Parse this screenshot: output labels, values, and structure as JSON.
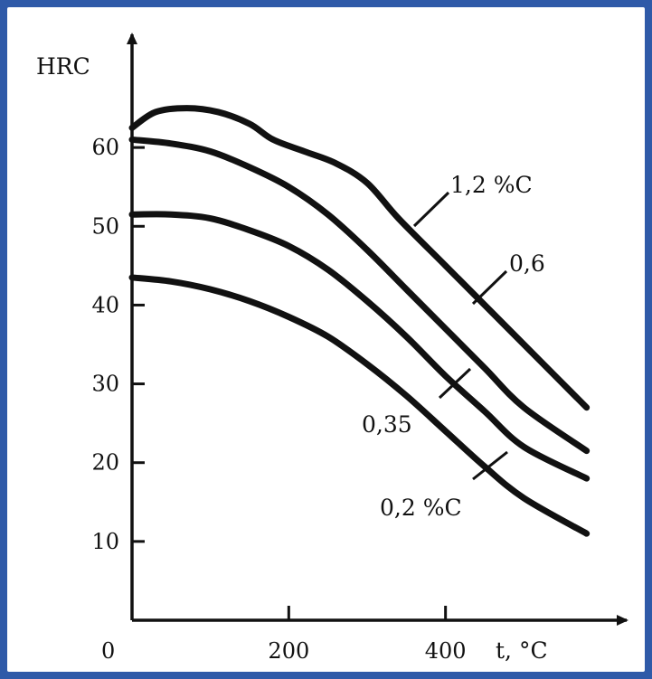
{
  "chart_data": {
    "type": "line",
    "title": "",
    "ylabel": "HRC",
    "xlabel": "t, °C",
    "origin_label": "0",
    "xlim": [
      0,
      600
    ],
    "ylim": [
      0,
      70
    ],
    "x_ticks": [
      200,
      400
    ],
    "y_ticks": [
      10,
      20,
      30,
      40,
      50,
      60
    ],
    "grid": false,
    "legend": "none",
    "series": [
      {
        "name": "1,2 %C",
        "label_text": "1,2 %C",
        "x": [
          0,
          30,
          70,
          110,
          150,
          180,
          220,
          260,
          300,
          340,
          400,
          460,
          520,
          580
        ],
        "y": [
          62.5,
          64.5,
          65,
          64.5,
          63,
          61,
          59.5,
          58,
          55.5,
          51,
          45,
          39,
          33,
          27
        ]
      },
      {
        "name": "0,6",
        "label_text": "0,6",
        "x": [
          0,
          50,
          100,
          150,
          200,
          250,
          300,
          350,
          400,
          450,
          500,
          580
        ],
        "y": [
          61,
          60.5,
          59.5,
          57.5,
          55,
          51.5,
          47,
          42,
          37,
          32,
          27,
          21.5
        ]
      },
      {
        "name": "0,35",
        "label_text": "0,35",
        "x": [
          0,
          50,
          100,
          150,
          200,
          250,
          300,
          350,
          400,
          450,
          500,
          580
        ],
        "y": [
          51.5,
          51.5,
          51,
          49.5,
          47.5,
          44.5,
          40.5,
          36,
          31,
          26.5,
          22,
          18
        ]
      },
      {
        "name": "0,2 %C",
        "label_text": "0,2 %C",
        "x": [
          0,
          50,
          100,
          150,
          200,
          250,
          300,
          350,
          400,
          450,
          500,
          580
        ],
        "y": [
          43.5,
          43,
          42,
          40.5,
          38.5,
          36,
          32.5,
          28.5,
          24,
          19.5,
          15.5,
          11
        ]
      }
    ]
  }
}
